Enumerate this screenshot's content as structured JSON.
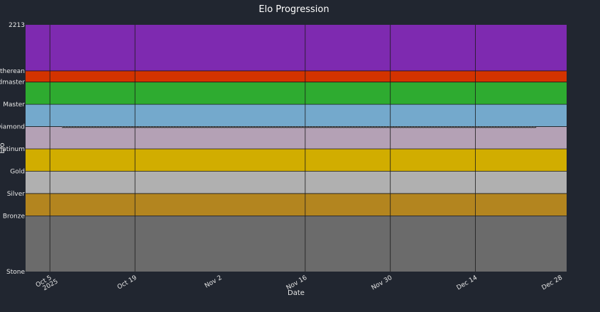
{
  "chart_data": {
    "type": "line",
    "title": "Elo Progression",
    "xlabel": "Date",
    "ylabel": "Elo",
    "background_color": "#212630",
    "grid": {
      "x": true,
      "y": true,
      "color": "#1a1a1a"
    },
    "xlim": [
      "2025-10-01",
      "2025-12-29"
    ],
    "ylim": [
      0,
      2213
    ],
    "x_ticks": [
      {
        "date": "2025-10-05",
        "label": "Oct 5",
        "sublabel": "2025"
      },
      {
        "date": "2025-10-19",
        "label": "Oct 19"
      },
      {
        "date": "2025-11-02",
        "label": "Nov 2"
      },
      {
        "date": "2025-11-16",
        "label": "Nov 16"
      },
      {
        "date": "2025-11-30",
        "label": "Nov 30"
      },
      {
        "date": "2025-12-14",
        "label": "Dec 14"
      },
      {
        "date": "2025-12-28",
        "label": "Dec 28"
      }
    ],
    "vertical_gridlines": [
      "2025-10-05",
      "2025-10-19",
      "2025-11-16",
      "2025-11-30",
      "2025-12-14"
    ],
    "y_ticks": [
      {
        "value": 0,
        "label": "Stone"
      },
      {
        "value": 500,
        "label": "Bronze"
      },
      {
        "value": 700,
        "label": "Silver"
      },
      {
        "value": 900,
        "label": "Gold"
      },
      {
        "value": 1100,
        "label": "Platinum"
      },
      {
        "value": 1300,
        "label": "Diamond"
      },
      {
        "value": 1500,
        "label": "Master"
      },
      {
        "value": 1700,
        "label": "Grandmaster"
      },
      {
        "value": 1800,
        "label": "Aetherean"
      },
      {
        "value": 2213,
        "label": "2213"
      }
    ],
    "bands": [
      {
        "name": "Stone",
        "from": 0,
        "to": 500,
        "color": "#6b6b6b"
      },
      {
        "name": "Bronze",
        "from": 500,
        "to": 700,
        "color": "#b3851f"
      },
      {
        "name": "Silver",
        "from": 700,
        "to": 900,
        "color": "#b0b0b0"
      },
      {
        "name": "Gold",
        "from": 900,
        "to": 1100,
        "color": "#d1ad00"
      },
      {
        "name": "Platinum",
        "from": 1100,
        "to": 1300,
        "color": "#b4a1b5"
      },
      {
        "name": "Diamond",
        "from": 1300,
        "to": 1500,
        "color": "#74a9cc"
      },
      {
        "name": "Master",
        "from": 1500,
        "to": 1700,
        "color": "#2eab30"
      },
      {
        "name": "Grandmaster",
        "from": 1700,
        "to": 1800,
        "color": "#d33300"
      },
      {
        "name": "Aetherean",
        "from": 1800,
        "to": 2213,
        "color": "#7e2ab0"
      }
    ],
    "series": [
      {
        "x": [
          "2025-10-07",
          "2025-12-24"
        ],
        "y": [
          1295,
          1295
        ],
        "color": "#333333",
        "style": "dashed"
      }
    ]
  }
}
